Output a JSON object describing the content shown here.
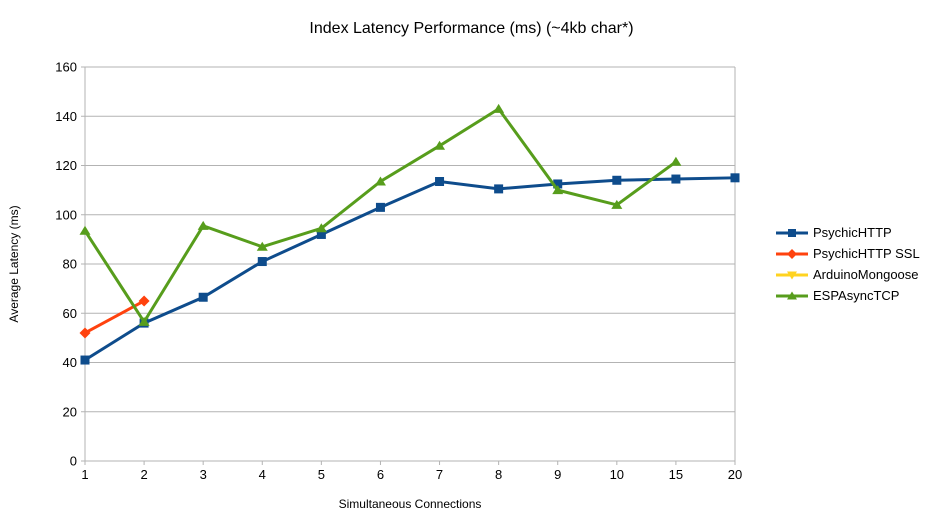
{
  "chart_data": {
    "type": "line",
    "title": "Index Latency Performance (ms) (~4kb char*)",
    "xlabel": "Simultaneous Connections",
    "ylabel": "Average Latency (ms)",
    "categories": [
      "1",
      "2",
      "3",
      "4",
      "5",
      "6",
      "7",
      "8",
      "9",
      "10",
      "15",
      "20"
    ],
    "ylim": [
      0,
      160
    ],
    "yticks": [
      0,
      20,
      40,
      60,
      80,
      100,
      120,
      140,
      160
    ],
    "grid": "horizontal",
    "legend_position": "right",
    "series": [
      {
        "name": "PsychicHTTP",
        "color": "#0E4C8C",
        "marker": "square",
        "values": [
          41,
          56,
          66.5,
          81,
          92,
          103,
          113.5,
          110.5,
          112.5,
          114,
          114.5,
          115
        ]
      },
      {
        "name": "PsychicHTTP SSL",
        "color": "#FF420E",
        "marker": "diamond",
        "values": [
          52,
          65,
          null,
          null,
          null,
          null,
          null,
          null,
          null,
          null,
          null,
          null
        ]
      },
      {
        "name": "ArduinoMongoose",
        "color": "#FFD320",
        "marker": "triangle-down",
        "values": [
          null,
          null,
          null,
          null,
          null,
          null,
          null,
          null,
          null,
          null,
          null,
          null
        ]
      },
      {
        "name": "ESPAsyncTCP",
        "color": "#579D1C",
        "marker": "triangle-up",
        "values": [
          93.5,
          56.5,
          95.5,
          87,
          94.5,
          113.5,
          128,
          143,
          110,
          104,
          121.5,
          null
        ]
      }
    ],
    "colors": {
      "grid": "#B3B3B3",
      "axis": "#B3B3B3",
      "text": "#000000"
    }
  }
}
